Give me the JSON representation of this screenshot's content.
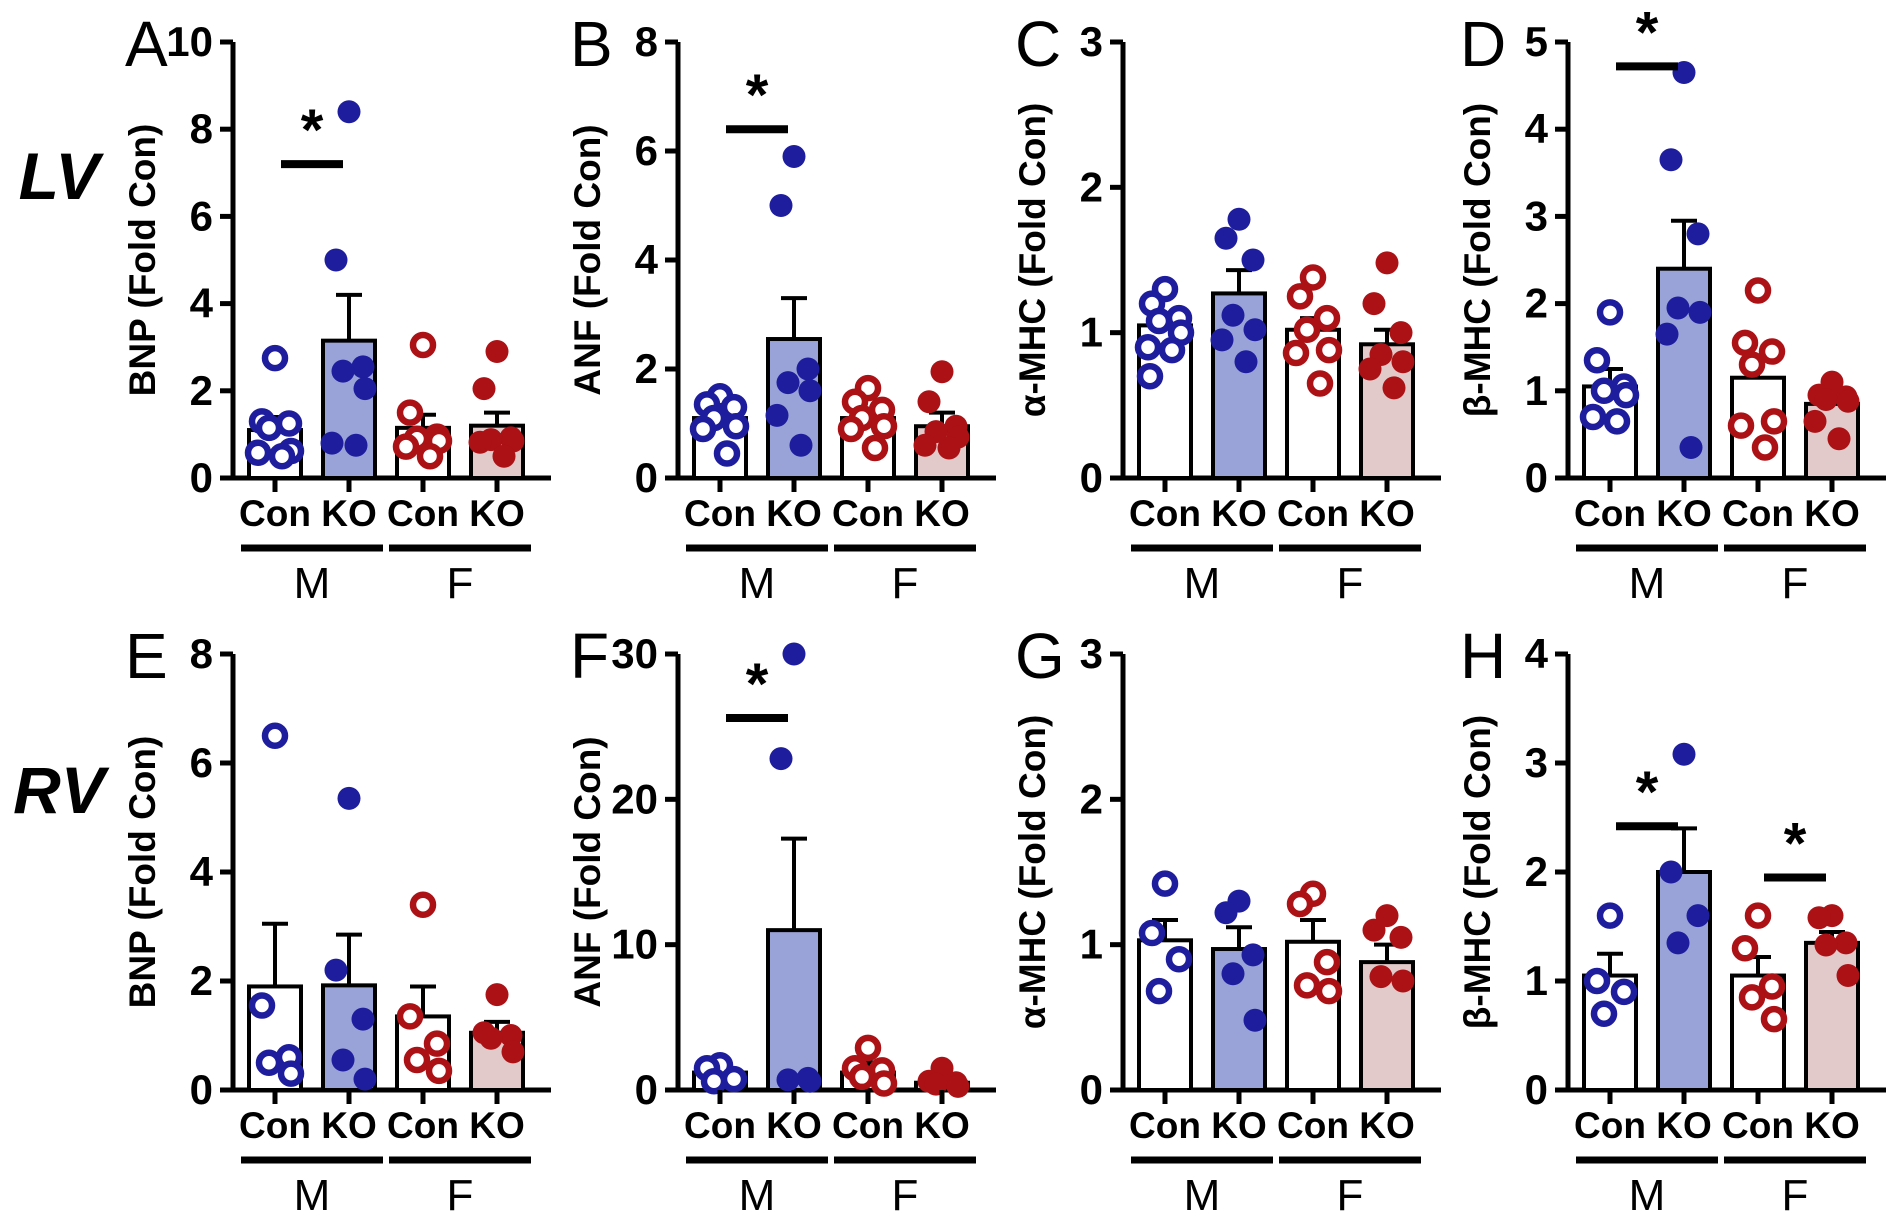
{
  "chart_data": {
    "type": "bar",
    "title": "",
    "row_labels": [
      "LV",
      "RV"
    ],
    "x_categories": [
      "Con",
      "KO",
      "Con",
      "KO"
    ],
    "sex_groups": [
      "M",
      "F"
    ],
    "grid": false,
    "legend": "none",
    "colors": {
      "navy": "#1d1d9e",
      "dark_red": "#ab1115",
      "ko_male_bar": "#9aa3d8",
      "ko_female_bar": "#e3caca",
      "con_bar": "#ffffff",
      "axis": "#000000"
    },
    "bar_styles": {
      "con_m": {
        "bar_fill": "#ffffff",
        "point_color": "#1d1d9e",
        "point_type": "open"
      },
      "ko_m": {
        "bar_fill": "#9aa3d8",
        "point_color": "#1d1d9e",
        "point_type": "filled"
      },
      "con_f": {
        "bar_fill": "#ffffff",
        "point_color": "#ab1115",
        "point_type": "open"
      },
      "ko_f": {
        "bar_fill": "#e3caca",
        "point_color": "#ab1115",
        "point_type": "filled"
      }
    },
    "panels": [
      {
        "letter": "A",
        "row": 0,
        "col": 0,
        "ylabel": "BNP (Fold Con)",
        "ylim": [
          0,
          10
        ],
        "yticks": [
          0,
          2,
          4,
          6,
          8,
          10
        ],
        "bars": [
          {
            "label": "Con",
            "sex": "M",
            "mean": 1.1,
            "err_top": 1.4,
            "points": [
              2.75,
              1.3,
              1.25,
              1.15,
              0.62,
              0.58,
              0.5
            ]
          },
          {
            "label": "KO",
            "sex": "M",
            "mean": 3.15,
            "err_top": 4.2,
            "points": [
              8.4,
              5.0,
              2.55,
              2.45,
              2.05,
              0.8,
              0.75
            ]
          },
          {
            "label": "Con",
            "sex": "F",
            "mean": 1.15,
            "err_top": 1.45,
            "points": [
              3.05,
              1.5,
              0.95,
              0.9,
              0.85,
              0.72,
              0.5
            ]
          },
          {
            "label": "KO",
            "sex": "F",
            "mean": 1.2,
            "err_top": 1.5,
            "points": [
              2.9,
              2.05,
              0.92,
              0.88,
              0.85,
              0.82,
              0.5
            ]
          }
        ],
        "sig": [
          {
            "a": 0,
            "b": 1,
            "y": 7.2,
            "label": "*"
          }
        ]
      },
      {
        "letter": "B",
        "row": 0,
        "col": 1,
        "ylabel": "ANF (Fold Con)",
        "ylim": [
          0,
          8
        ],
        "yticks": [
          0,
          2,
          4,
          6,
          8
        ],
        "bars": [
          {
            "label": "Con",
            "sex": "M",
            "mean": 1.1,
            "err_top": 1.25,
            "points": [
              1.5,
              1.35,
              1.3,
              1.1,
              0.95,
              0.9,
              0.45
            ]
          },
          {
            "label": "KO",
            "sex": "M",
            "mean": 2.55,
            "err_top": 3.3,
            "points": [
              5.9,
              5.0,
              2.0,
              1.75,
              1.6,
              1.15,
              0.6
            ]
          },
          {
            "label": "Con",
            "sex": "F",
            "mean": 1.1,
            "err_top": 1.25,
            "points": [
              1.65,
              1.4,
              1.25,
              1.1,
              0.95,
              0.9,
              0.55
            ]
          },
          {
            "label": "KO",
            "sex": "F",
            "mean": 0.95,
            "err_top": 1.2,
            "points": [
              1.95,
              1.4,
              0.95,
              0.85,
              0.75,
              0.6,
              0.55
            ]
          }
        ],
        "sig": [
          {
            "a": 0,
            "b": 1,
            "y": 6.4,
            "label": "*"
          }
        ]
      },
      {
        "letter": "C",
        "row": 0,
        "col": 2,
        "ylabel": "α-MHC (Fold Con)",
        "ylim": [
          0,
          3
        ],
        "yticks": [
          0,
          1,
          2,
          3
        ],
        "bars": [
          {
            "label": "Con",
            "sex": "M",
            "mean": 1.05,
            "err_top": 1.13,
            "points": [
              1.3,
              1.2,
              1.1,
              1.08,
              1.0,
              0.9,
              0.88,
              0.7
            ]
          },
          {
            "label": "KO",
            "sex": "M",
            "mean": 1.27,
            "err_top": 1.43,
            "points": [
              1.78,
              1.65,
              1.5,
              1.12,
              1.02,
              0.95,
              0.8
            ]
          },
          {
            "label": "Con",
            "sex": "F",
            "mean": 1.02,
            "err_top": 1.1,
            "points": [
              1.38,
              1.25,
              1.1,
              1.02,
              0.88,
              0.86,
              0.65
            ]
          },
          {
            "label": "KO",
            "sex": "F",
            "mean": 0.92,
            "err_top": 1.02,
            "points": [
              1.48,
              1.2,
              1.0,
              0.85,
              0.8,
              0.75,
              0.62
            ]
          }
        ],
        "sig": []
      },
      {
        "letter": "D",
        "row": 0,
        "col": 3,
        "ylabel": "β-MHC (Fold Con)",
        "ylim": [
          0,
          5
        ],
        "yticks": [
          0,
          1,
          2,
          3,
          4,
          5
        ],
        "bars": [
          {
            "label": "Con",
            "sex": "M",
            "mean": 1.05,
            "err_top": 1.25,
            "points": [
              1.9,
              1.35,
              1.05,
              1.0,
              0.95,
              0.7,
              0.65
            ]
          },
          {
            "label": "KO",
            "sex": "M",
            "mean": 2.4,
            "err_top": 2.95,
            "points": [
              4.65,
              3.65,
              2.8,
              1.95,
              1.9,
              1.65,
              0.35
            ]
          },
          {
            "label": "Con",
            "sex": "F",
            "mean": 1.15,
            "err_top": 1.4,
            "points": [
              2.15,
              1.55,
              1.45,
              1.3,
              0.65,
              0.6,
              0.35
            ]
          },
          {
            "label": "KO",
            "sex": "F",
            "mean": 0.85,
            "err_top": 0.95,
            "points": [
              1.1,
              0.95,
              0.93,
              0.9,
              0.88,
              0.65,
              0.45
            ]
          }
        ],
        "sig": [
          {
            "a": 0,
            "b": 1,
            "y": 4.72,
            "label": "*"
          }
        ]
      },
      {
        "letter": "E",
        "row": 1,
        "col": 0,
        "ylabel": "BNP (Fold Con)",
        "ylim": [
          0,
          8
        ],
        "yticks": [
          0,
          2,
          4,
          6,
          8
        ],
        "bars": [
          {
            "label": "Con",
            "sex": "M",
            "mean": 1.9,
            "err_top": 3.05,
            "points": [
              6.5,
              1.55,
              0.6,
              0.5,
              0.3
            ]
          },
          {
            "label": "KO",
            "sex": "M",
            "mean": 1.92,
            "err_top": 2.85,
            "points": [
              5.35,
              2.2,
              1.3,
              0.55,
              0.2
            ]
          },
          {
            "label": "Con",
            "sex": "F",
            "mean": 1.35,
            "err_top": 1.9,
            "points": [
              3.4,
              1.35,
              0.85,
              0.55,
              0.35
            ]
          },
          {
            "label": "KO",
            "sex": "F",
            "mean": 1.05,
            "err_top": 1.25,
            "points": [
              1.75,
              1.05,
              1.0,
              0.95,
              0.7
            ]
          }
        ],
        "sig": []
      },
      {
        "letter": "F",
        "row": 1,
        "col": 1,
        "ylabel": "ANF (Fold Con)",
        "ylim": [
          0,
          30
        ],
        "yticks": [
          0,
          10,
          20,
          30
        ],
        "bars": [
          {
            "label": "Con",
            "sex": "M",
            "mean": 1.2,
            "err_top": 1.7,
            "points": [
              1.7,
              1.5,
              0.75,
              0.6
            ]
          },
          {
            "label": "KO",
            "sex": "M",
            "mean": 11.0,
            "err_top": 17.3,
            "points": [
              30,
              22.8,
              0.8,
              0.7,
              0.6
            ]
          },
          {
            "label": "Con",
            "sex": "F",
            "mean": 1.2,
            "err_top": 1.9,
            "points": [
              2.9,
              1.5,
              1.35,
              0.9,
              0.45
            ]
          },
          {
            "label": "KO",
            "sex": "F",
            "mean": 0.5,
            "err_top": 0.8,
            "points": [
              1.5,
              0.6,
              0.5,
              0.4,
              0.25
            ]
          }
        ],
        "sig": [
          {
            "a": 0,
            "b": 1,
            "y": 25.6,
            "label": "*"
          }
        ]
      },
      {
        "letter": "G",
        "row": 1,
        "col": 2,
        "ylabel": "α-MHC (Fold Con)",
        "ylim": [
          0,
          3
        ],
        "yticks": [
          0,
          1,
          2,
          3
        ],
        "bars": [
          {
            "label": "Con",
            "sex": "M",
            "mean": 1.03,
            "err_top": 1.17,
            "points": [
              1.42,
              1.08,
              0.9,
              0.68
            ]
          },
          {
            "label": "KO",
            "sex": "M",
            "mean": 0.97,
            "err_top": 1.12,
            "points": [
              1.3,
              1.22,
              0.93,
              0.8,
              0.48
            ]
          },
          {
            "label": "Con",
            "sex": "F",
            "mean": 1.02,
            "err_top": 1.17,
            "points": [
              1.35,
              1.28,
              0.88,
              0.72,
              0.68
            ]
          },
          {
            "label": "KO",
            "sex": "F",
            "mean": 0.88,
            "err_top": 1.0,
            "points": [
              1.2,
              1.1,
              1.05,
              0.78,
              0.75
            ]
          }
        ],
        "sig": []
      },
      {
        "letter": "H",
        "row": 1,
        "col": 3,
        "ylabel": "β-MHC (Fold Con)",
        "ylim": [
          0,
          4
        ],
        "yticks": [
          0,
          1,
          2,
          3,
          4
        ],
        "bars": [
          {
            "label": "Con",
            "sex": "M",
            "mean": 1.05,
            "err_top": 1.25,
            "points": [
              1.6,
              1.0,
              0.9,
              0.7
            ]
          },
          {
            "label": "KO",
            "sex": "M",
            "mean": 2.0,
            "err_top": 2.4,
            "points": [
              3.08,
              2.0,
              1.6,
              1.35
            ]
          },
          {
            "label": "Con",
            "sex": "F",
            "mean": 1.05,
            "err_top": 1.22,
            "points": [
              1.6,
              1.3,
              0.95,
              0.85,
              0.65
            ]
          },
          {
            "label": "KO",
            "sex": "F",
            "mean": 1.35,
            "err_top": 1.45,
            "points": [
              1.6,
              1.58,
              1.35,
              1.33,
              1.05
            ]
          }
        ],
        "sig": [
          {
            "a": 0,
            "b": 1,
            "y": 2.42,
            "label": "*"
          },
          {
            "a": 2,
            "b": 3,
            "y": 1.95,
            "label": "*"
          }
        ]
      }
    ]
  }
}
